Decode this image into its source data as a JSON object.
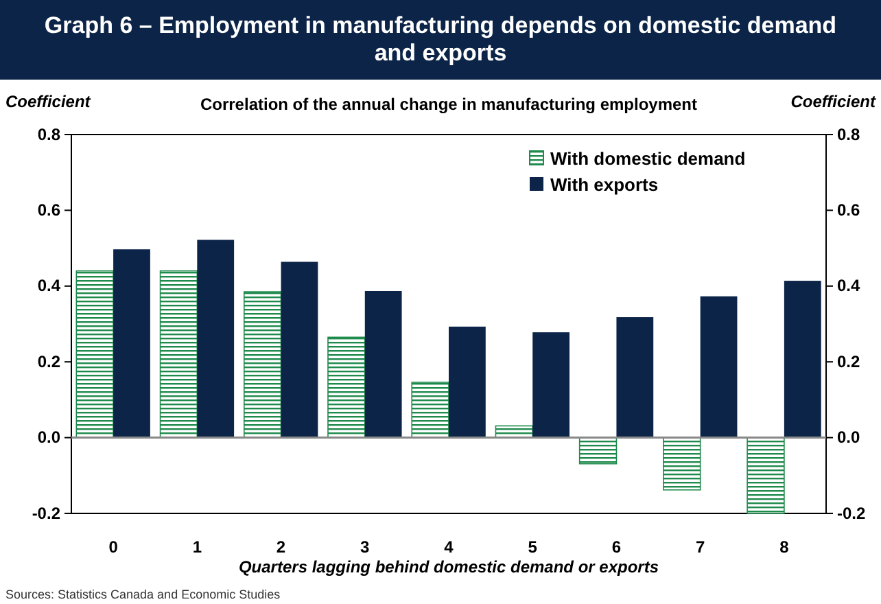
{
  "chart_data": {
    "type": "bar",
    "title": "Graph 6 – Employment in manufacturing depends on domestic demand and exports",
    "subtitle": "Correlation of the annual change in manufacturing employment",
    "xlabel": "Quarters lagging behind domestic demand or exports",
    "ylabel": "Coefficient",
    "y2label": "Coefficient",
    "categories": [
      "0",
      "1",
      "2",
      "3",
      "4",
      "5",
      "6",
      "7",
      "8"
    ],
    "series": [
      {
        "name": "With domestic demand",
        "color": "#1e8a4c",
        "values": [
          0.44,
          0.44,
          0.385,
          0.265,
          0.146,
          0.031,
          -0.069,
          -0.138,
          -0.2
        ]
      },
      {
        "name": "With exports",
        "color": "#0b2447",
        "values": [
          0.497,
          0.522,
          0.464,
          0.387,
          0.293,
          0.278,
          0.318,
          0.373,
          0.414
        ]
      }
    ],
    "ylim": [
      -0.2,
      0.8
    ],
    "yticks": [
      {
        "value": -0.2,
        "label": "-0.2"
      },
      {
        "value": 0,
        "label": "0.0"
      },
      {
        "value": 0.2,
        "label": "0.2"
      },
      {
        "value": 0.4,
        "label": "0.4"
      },
      {
        "value": 0.6,
        "label": "0.6"
      },
      {
        "value": 0.8,
        "label": "0.8"
      }
    ],
    "y2lim": [
      -0.2,
      0.8
    ],
    "y2ticks": [
      {
        "value": -0.2,
        "label": "-0.2"
      },
      {
        "value": 0,
        "label": "0.0"
      },
      {
        "value": 0.2,
        "label": "0.2"
      },
      {
        "value": 0.4,
        "label": "0.4"
      },
      {
        "value": 0.6,
        "label": "0.6"
      },
      {
        "value": 0.8,
        "label": "0.8"
      }
    ],
    "legend": "top right",
    "annotations": [
      "Sources: Statistics Canada and Economic Studies"
    ]
  }
}
